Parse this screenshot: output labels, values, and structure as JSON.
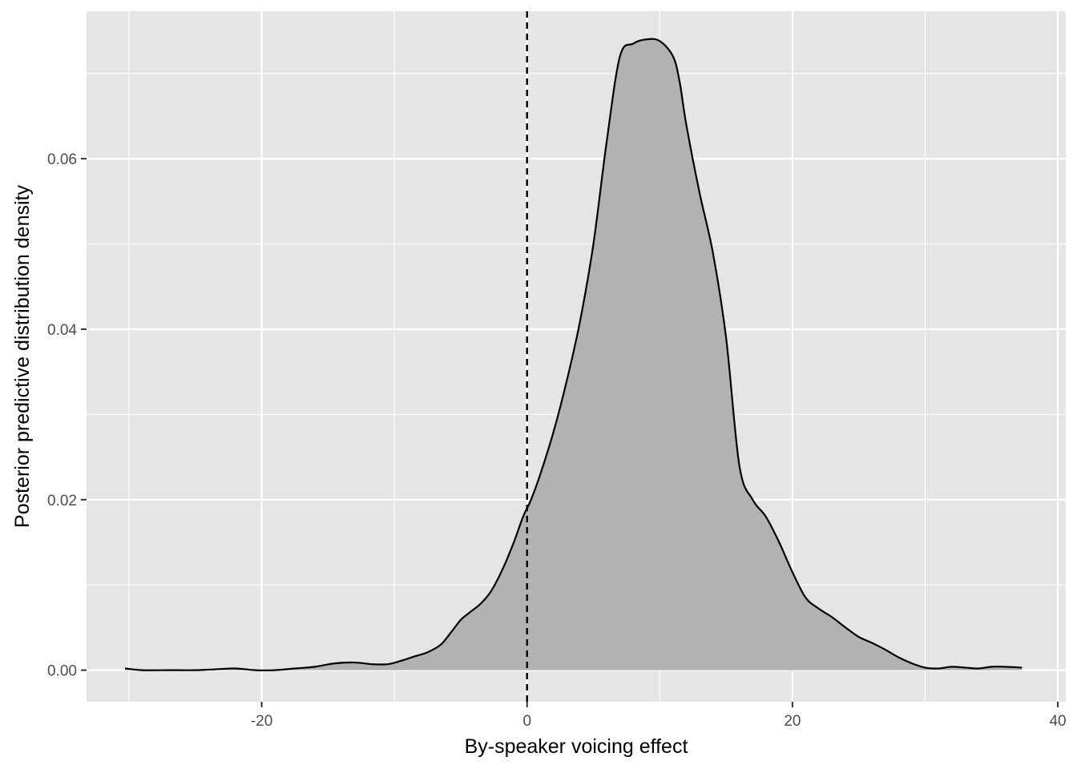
{
  "chart_data": {
    "type": "area",
    "title": "",
    "xlabel": "By-speaker voicing effect",
    "ylabel": "Posterior predictive distribution density",
    "xlim": [
      -33.2,
      40.6
    ],
    "ylim": [
      -0.0037,
      0.0773
    ],
    "x_ticks": [
      -20,
      0,
      20,
      40
    ],
    "x_tick_labels": [
      "-20",
      "0",
      "20",
      "40"
    ],
    "y_ticks": [
      0.0,
      0.02,
      0.04,
      0.06
    ],
    "y_tick_labels": [
      "0.00",
      "0.02",
      "0.04",
      "0.06"
    ],
    "x_minor_ticks": [
      -30,
      -10,
      10,
      30
    ],
    "y_minor_ticks": [
      0.01,
      0.03,
      0.05,
      0.07
    ],
    "grid": true,
    "legend": "none",
    "reference_line": {
      "x": 0,
      "style": "dashed"
    },
    "colors": {
      "panel_background": "#e5e5e5",
      "grid": "#ffffff",
      "fill": "#b2b2b2",
      "line": "#000000",
      "tick_text": "#4d4d4d"
    },
    "series": [
      {
        "x": [
          -30.3,
          -29,
          -27,
          -25,
          -23.5,
          -22,
          -20.5,
          -19,
          -17.5,
          -16,
          -14.5,
          -13,
          -11.7,
          -10.5,
          -9.5,
          -8.5,
          -7.5,
          -6.5,
          -5.7,
          -5,
          -4.3,
          -3.5,
          -2.7,
          -1.8,
          -1,
          -0.3,
          0.3,
          1,
          2,
          3,
          4,
          5,
          6,
          7,
          8,
          9,
          10,
          11,
          11.5,
          12,
          13,
          14,
          15,
          16,
          17,
          18,
          19,
          20,
          21,
          22,
          23,
          24,
          25,
          26,
          27,
          28,
          29,
          30,
          31,
          32,
          33,
          34,
          35,
          36,
          37.3
        ],
        "y": [
          0.0002,
          0.0,
          0.0,
          0.0,
          0.0001,
          0.0002,
          0.0,
          0.0,
          0.0002,
          0.0004,
          0.0008,
          0.0009,
          0.0007,
          0.0007,
          0.0011,
          0.0016,
          0.0021,
          0.003,
          0.0045,
          0.0059,
          0.0068,
          0.0078,
          0.0093,
          0.012,
          0.015,
          0.018,
          0.02,
          0.023,
          0.028,
          0.034,
          0.041,
          0.05,
          0.062,
          0.072,
          0.0735,
          0.074,
          0.0738,
          0.072,
          0.069,
          0.064,
          0.056,
          0.049,
          0.039,
          0.024,
          0.02,
          0.018,
          0.015,
          0.0115,
          0.0085,
          0.0072,
          0.0062,
          0.005,
          0.0039,
          0.0032,
          0.0024,
          0.0015,
          0.0008,
          0.0003,
          0.0002,
          0.0004,
          0.0003,
          0.0002,
          0.0004,
          0.0004,
          0.0003
        ]
      }
    ]
  }
}
